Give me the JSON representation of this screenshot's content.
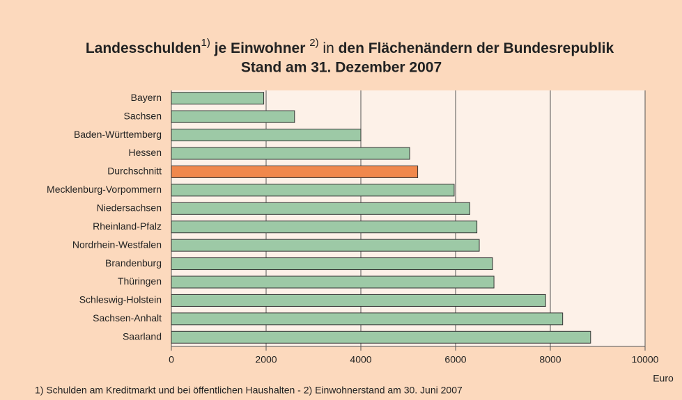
{
  "chart_data": {
    "type": "barh",
    "title": [
      "Landesschulden",
      "1)",
      " je Einwohner ",
      "2)",
      " in ",
      "den Flächenändern der Bundesrepublik"
    ],
    "subtitle": "Stand am 31. Dezember 2007",
    "categories": [
      "Bayern",
      "Sachsen",
      "Baden-Württemberg",
      "Hessen",
      "Durchschnitt",
      "Mecklenburg-Vorpommern",
      "Niedersachsen",
      "Rheinland-Pfalz",
      "Nordrhein-Westfalen",
      "Brandenburg",
      "Thüringen",
      "Schleswig-Holstein",
      "Sachsen-Anhalt",
      "Saarland"
    ],
    "values": [
      1950,
      2600,
      4000,
      5030,
      5200,
      5970,
      6300,
      6450,
      6500,
      6780,
      6810,
      7900,
      8260,
      8850
    ],
    "colors": [
      "#9dc9a6",
      "#9dc9a6",
      "#9dc9a6",
      "#9dc9a6",
      "#f0884c",
      "#9dc9a6",
      "#9dc9a6",
      "#9dc9a6",
      "#9dc9a6",
      "#9dc9a6",
      "#9dc9a6",
      "#9dc9a6",
      "#9dc9a6",
      "#9dc9a6"
    ],
    "xlim": [
      0,
      10000
    ],
    "xticks": [
      0,
      2000,
      4000,
      6000,
      8000,
      10000
    ],
    "grid": true,
    "xlabel": "Euro",
    "footnote": "1) Schulden am Kreditmarkt und bei öffentlichen Haushalten - 2) Einwohnerstand am 30. Juni 2007"
  }
}
